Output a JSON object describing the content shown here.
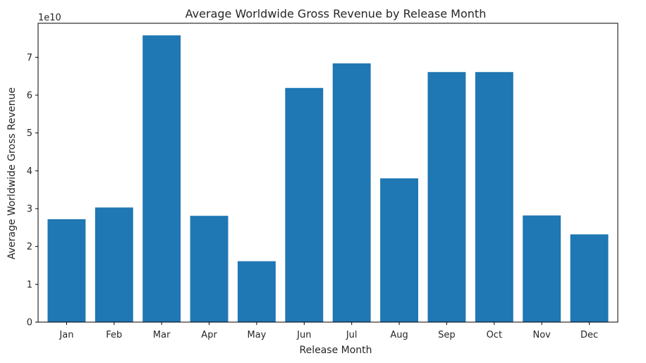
{
  "chart_data": {
    "type": "bar",
    "title": "Average Worldwide Gross Revenue by Release Month",
    "xlabel": "Release Month",
    "ylabel": "Average Worldwide Gross Revenue",
    "y_offset_label": "1e10",
    "ylim": [
      0,
      7.9
    ],
    "yticks": [
      "0",
      "1",
      "2",
      "3",
      "4",
      "5",
      "6",
      "7"
    ],
    "categories": [
      "Jan",
      "Feb",
      "Mar",
      "Apr",
      "May",
      "Jun",
      "Jul",
      "Aug",
      "Sep",
      "Oct",
      "Nov",
      "Dec"
    ],
    "values": [
      2.72,
      3.03,
      7.58,
      2.81,
      1.61,
      6.19,
      6.84,
      3.8,
      6.61,
      6.61,
      2.82,
      2.32
    ],
    "grid": false,
    "legend": "none",
    "bar_color": "#1f77b4"
  }
}
